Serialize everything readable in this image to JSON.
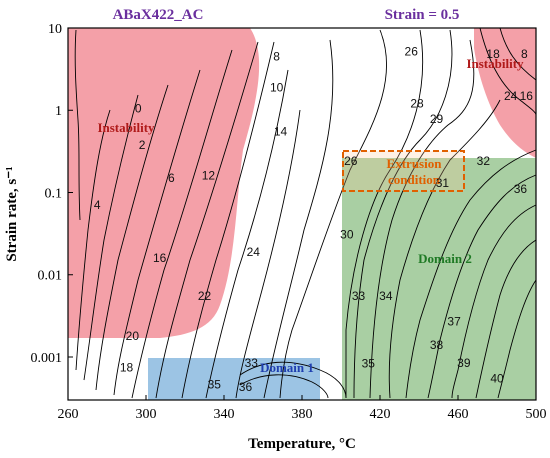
{
  "header": {
    "material": "ABaX422_AC",
    "strain": "Strain = 0.5"
  },
  "chart_data": {
    "type": "contour",
    "xlabel": "Temperature, °C",
    "ylabel": "Strain rate, s⁻¹",
    "xlim": [
      260,
      500
    ],
    "ylim": [
      0.0003,
      10
    ],
    "y_scale": "log",
    "x_ticks": [
      260,
      300,
      340,
      380,
      420,
      460,
      500
    ],
    "x_tick_labels": [
      "260",
      "300",
      "340",
      "380",
      "420",
      "460",
      "500"
    ],
    "y_ticks": [
      0.001,
      0.01,
      0.1,
      1,
      10
    ],
    "y_tick_labels": [
      "0.001",
      "0.01",
      "0.1",
      "1",
      "10"
    ],
    "regions": [
      {
        "name": "Instability",
        "color": "#f4a0a8",
        "label_at": {
          "x": 290,
          "y": 0.6
        }
      },
      {
        "name": "Instability",
        "color": "#f4a0a8",
        "label_at": {
          "x": 489,
          "y": 4.5
        }
      },
      {
        "name": "Domain 1",
        "color": "#9cc4e4",
        "x_range": [
          300,
          390
        ],
        "y_range": [
          0.0003,
          0.001
        ],
        "label_color": "#1f3fb0"
      },
      {
        "name": "Domain 2",
        "color": "#a9cfa3",
        "x_range": [
          400,
          500
        ],
        "y_range": [
          0.0003,
          0.28
        ],
        "label_color": "#1f7a25"
      },
      {
        "name": "Extrusion condition",
        "x_range": [
          400,
          460
        ],
        "y_range": [
          0.1,
          0.3
        ],
        "label_color": "#e06000"
      }
    ],
    "extrusion_label": [
      "Extrusion",
      "condition"
    ],
    "contour_labels": [
      {
        "text": "0",
        "x": 296,
        "y": 1.05
      },
      {
        "text": "2",
        "x": 298,
        "y": 0.38
      },
      {
        "text": "4",
        "x": 275,
        "y": 0.07
      },
      {
        "text": "6",
        "x": 313,
        "y": 0.15
      },
      {
        "text": "8",
        "x": 367,
        "y": 4.5
      },
      {
        "text": "10",
        "x": 367,
        "y": 1.9
      },
      {
        "text": "12",
        "x": 332,
        "y": 0.16
      },
      {
        "text": "14",
        "x": 369,
        "y": 0.55
      },
      {
        "text": "16",
        "x": 307,
        "y": 0.016
      },
      {
        "text": "18",
        "x": 290,
        "y": 0.00075
      },
      {
        "text": "20",
        "x": 293,
        "y": 0.0018
      },
      {
        "text": "22",
        "x": 330,
        "y": 0.0055
      },
      {
        "text": "24",
        "x": 355,
        "y": 0.019
      },
      {
        "text": "26",
        "x": 436,
        "y": 5.2
      },
      {
        "text": "26",
        "x": 405,
        "y": 0.24
      },
      {
        "text": "28",
        "x": 439,
        "y": 1.2
      },
      {
        "text": "29",
        "x": 449,
        "y": 0.78
      },
      {
        "text": "30",
        "x": 403,
        "y": 0.031
      },
      {
        "text": "31",
        "x": 452,
        "y": 0.13
      },
      {
        "text": "32",
        "x": 473,
        "y": 0.24
      },
      {
        "text": "33",
        "x": 409,
        "y": 0.0055
      },
      {
        "text": "33",
        "x": 354,
        "y": 0.00085
      },
      {
        "text": "34",
        "x": 423,
        "y": 0.0055
      },
      {
        "text": "35",
        "x": 414,
        "y": 0.00083
      },
      {
        "text": "35",
        "x": 335,
        "y": 0.00046
      },
      {
        "text": "36",
        "x": 492,
        "y": 0.11
      },
      {
        "text": "36",
        "x": 351,
        "y": 0.00043
      },
      {
        "text": "37",
        "x": 458,
        "y": 0.0027
      },
      {
        "text": "38",
        "x": 449,
        "y": 0.0014
      },
      {
        "text": "39",
        "x": 463,
        "y": 0.00085
      },
      {
        "text": "40",
        "x": 480,
        "y": 0.00055
      },
      {
        "text": "18",
        "x": 478,
        "y": 4.8
      },
      {
        "text": "8",
        "x": 494,
        "y": 4.8
      },
      {
        "text": "24",
        "x": 487,
        "y": 1.5
      },
      {
        "text": "16",
        "x": 495,
        "y": 1.5
      }
    ],
    "grid": false
  }
}
